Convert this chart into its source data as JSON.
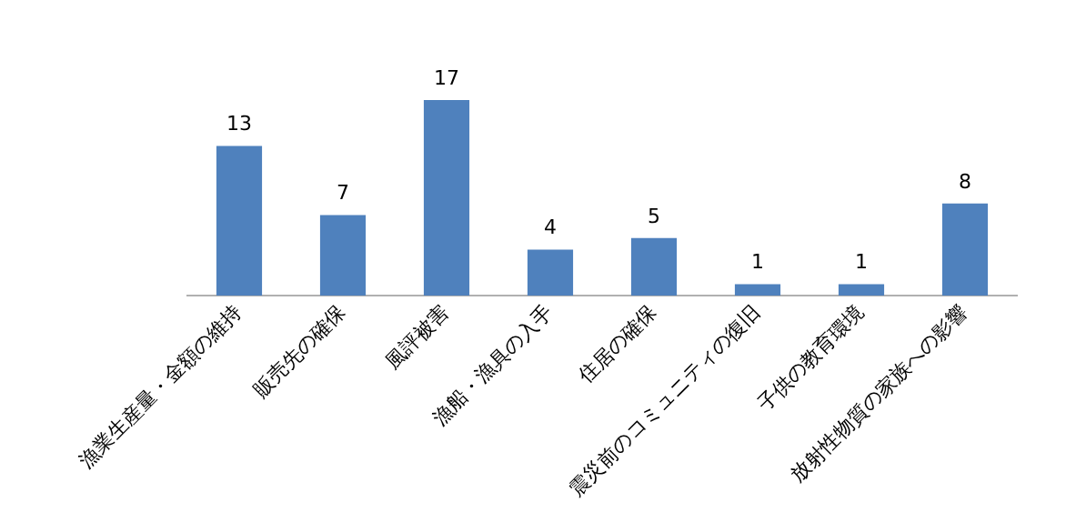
{
  "chart_data": {
    "type": "bar",
    "categories": [
      "漁業生産量・金額の維持",
      "販売先の確保",
      "風評被害",
      "漁船・漁具の入手",
      "住居の確保",
      "震災前のコミュニティの復旧",
      "子供の教育環境",
      "放射性物質の家族への影響"
    ],
    "values": [
      13,
      7,
      17,
      4,
      5,
      1,
      1,
      8
    ],
    "color": "#4f81bd",
    "data_labels": true,
    "grid": false,
    "legend": false
  }
}
